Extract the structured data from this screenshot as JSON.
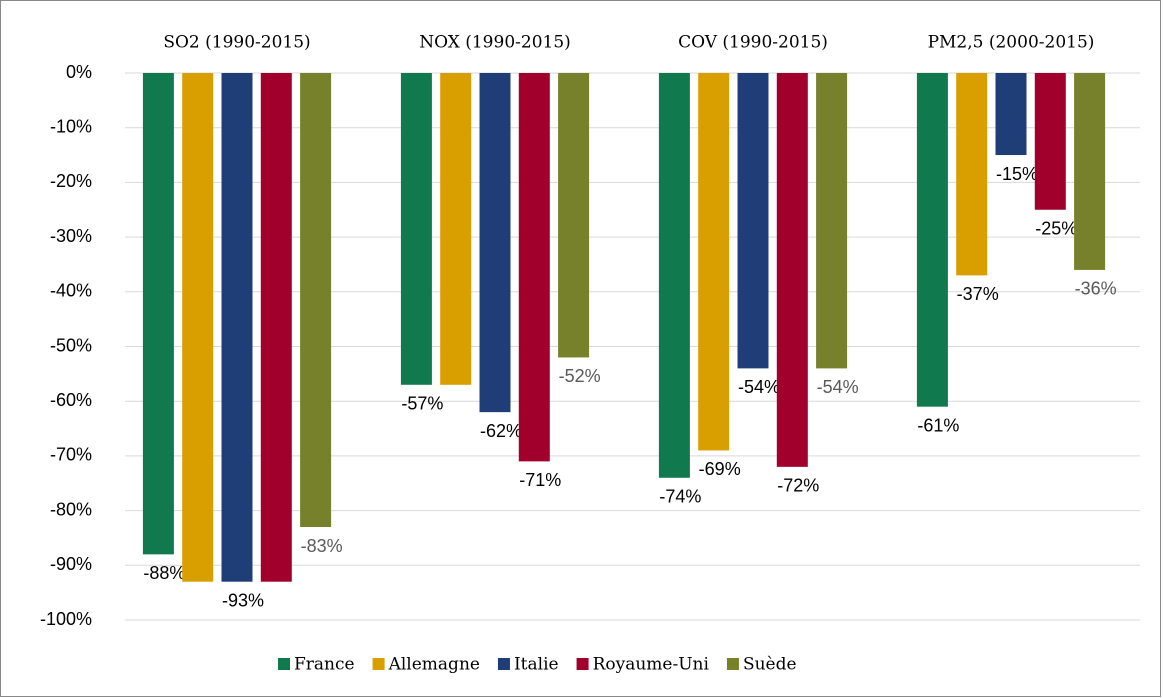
{
  "chart_data": {
    "type": "bar",
    "categories": [
      "SO2 (1990-2015)",
      "NOX (1990-2015)",
      "COV (1990-2015)",
      "PM2,5 (2000-2015)"
    ],
    "series": [
      {
        "name": "France",
        "color": "#107a4e",
        "label_color": "#000000",
        "values": [
          -88,
          -57,
          -74,
          -61
        ],
        "value_labels": [
          "-88%",
          "-57%",
          "-74%",
          "-61%"
        ]
      },
      {
        "name": "Allemagne",
        "color": "#d99e00",
        "label_color": "#000000",
        "values": [
          -93,
          -57,
          -69,
          -37
        ],
        "value_labels": [
          null,
          null,
          "-69%",
          "-37%"
        ]
      },
      {
        "name": "Italie",
        "color": "#1f3e78",
        "label_color": "#000000",
        "values": [
          -93,
          -62,
          -54,
          -15
        ],
        "value_labels": [
          "-93%",
          "-62%",
          "-54%",
          "-15%"
        ]
      },
      {
        "name": "Royaume-Uni",
        "color": "#a1002c",
        "label_color": "#000000",
        "values": [
          -93,
          -71,
          -72,
          -25
        ],
        "value_labels": [
          null,
          "-71%",
          "-72%",
          "-25%"
        ]
      },
      {
        "name": "Suède",
        "color": "#77802a",
        "label_color": "#595959",
        "values": [
          -83,
          -52,
          -54,
          -36
        ],
        "value_labels": [
          "-83%",
          "-52%",
          "-54%",
          "-36%"
        ]
      }
    ],
    "ylim": [
      -100,
      0
    ],
    "yticks": [
      {
        "value": 0,
        "label": "0%"
      },
      {
        "value": -10,
        "label": "-10%"
      },
      {
        "value": -20,
        "label": "-20%"
      },
      {
        "value": -30,
        "label": "-30%"
      },
      {
        "value": -40,
        "label": "-40%"
      },
      {
        "value": -50,
        "label": "-50%"
      },
      {
        "value": -60,
        "label": "-60%"
      },
      {
        "value": -70,
        "label": "-70%"
      },
      {
        "value": -80,
        "label": "-80%"
      },
      {
        "value": -90,
        "label": "-90%"
      },
      {
        "value": -100,
        "label": "-100%"
      }
    ],
    "grid": true,
    "legend": "bottom"
  }
}
